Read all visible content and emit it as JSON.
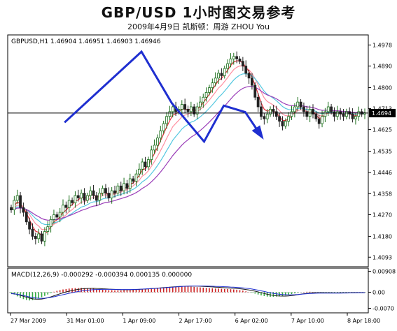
{
  "header": {
    "title": "GBP/USD 1小时图交易参考",
    "subtitle": "2009年4月9日  凯斯顿：周游 ZHOU You"
  },
  "chart_data": {
    "type": "line",
    "main_label": "GBPUSD,H1  1.46904 1.46951 1.46903 1.46946",
    "macd_label": "MACD(12,26,9) -0.000292 -0.000394 0.000135 0.000000",
    "price_axis": {
      "ylim": [
        1.4053,
        1.502
      ],
      "ticks": [
        "1.4978",
        "1.4890",
        "1.4800",
        "1.4713",
        "1.4625",
        "1.4535",
        "1.4446",
        "1.4358",
        "1.4270",
        "1.4180",
        "1.4093"
      ]
    },
    "macd_axis": {
      "ylim": [
        -0.009,
        0.0105
      ],
      "ticks": [
        "0.00908",
        "0.00",
        "-0.0070"
      ]
    },
    "current_price": {
      "value": 1.4694,
      "label": "1.4694"
    },
    "x_ticks": [
      "27 Mar 2009",
      "31 Mar 01:00",
      "1 Apr 09:00",
      "2 Apr 17:00",
      "6 Apr 02:00",
      "7 Apr 10:00",
      "8 Apr 18:00"
    ],
    "close": [
      1.429,
      1.433,
      1.435,
      1.43,
      1.428,
      1.424,
      1.421,
      1.418,
      1.417,
      1.419,
      1.416,
      1.42,
      1.422,
      1.425,
      1.427,
      1.426,
      1.428,
      1.431,
      1.43,
      1.433,
      1.432,
      1.435,
      1.434,
      1.436,
      1.433,
      1.435,
      1.437,
      1.435,
      1.433,
      1.436,
      1.438,
      1.436,
      1.434,
      1.437,
      1.436,
      1.439,
      1.437,
      1.44,
      1.438,
      1.442,
      1.441,
      1.444,
      1.446,
      1.449,
      1.447,
      1.45,
      1.454,
      1.456,
      1.459,
      1.462,
      1.465,
      1.468,
      1.47,
      1.472,
      1.47,
      1.471,
      1.473,
      1.471,
      1.47,
      1.472,
      1.469,
      1.472,
      1.474,
      1.476,
      1.478,
      1.48,
      1.482,
      1.484,
      1.486,
      1.485,
      1.488,
      1.49,
      1.492,
      1.493,
      1.492,
      1.491,
      1.489,
      1.486,
      1.484,
      1.481,
      1.476,
      1.472,
      1.468,
      1.467,
      1.469,
      1.471,
      1.47,
      1.468,
      1.466,
      1.464,
      1.466,
      1.468,
      1.47,
      1.472,
      1.474,
      1.472,
      1.47,
      1.468,
      1.471,
      1.469,
      1.467,
      1.465,
      1.468,
      1.47,
      1.472,
      1.47,
      1.468,
      1.47,
      1.469,
      1.468,
      1.47,
      1.469,
      1.467,
      1.468,
      1.47,
      1.469,
      1.4695
    ],
    "macd_hist": [
      -0.0005,
      -0.001,
      -0.0018,
      -0.0025,
      -0.003,
      -0.0034,
      -0.0036,
      -0.0035,
      -0.0032,
      -0.0028,
      -0.0022,
      -0.0016,
      -0.001,
      -0.0004,
      0.0002,
      0.0006,
      0.0009,
      0.0012,
      0.0014,
      0.0016,
      0.0017,
      0.0018,
      0.0018,
      0.0019,
      0.0018,
      0.0017,
      0.0016,
      0.0015,
      0.0013,
      0.0012,
      0.0011,
      0.001,
      0.0009,
      0.0009,
      0.0008,
      0.0008,
      0.0008,
      0.0009,
      0.0009,
      0.001,
      0.0011,
      0.0012,
      0.0013,
      0.0014,
      0.0015,
      0.0016,
      0.0017,
      0.0018,
      0.0019,
      0.002,
      0.0021,
      0.0022,
      0.0023,
      0.0024,
      0.0024,
      0.0024,
      0.0025,
      0.0025,
      0.0025,
      0.0024,
      0.0023,
      0.0022,
      0.0021,
      0.002,
      0.0019,
      0.0018,
      0.0017,
      0.0016,
      0.0016,
      0.0015,
      0.0014,
      0.0014,
      0.0013,
      0.0012,
      0.0011,
      0.0009,
      0.0007,
      0.0004,
      0.0001,
      -0.0002,
      -0.0006,
      -0.001,
      -0.0014,
      -0.0017,
      -0.0019,
      -0.002,
      -0.002,
      -0.0019,
      -0.0018,
      -0.0016,
      -0.0014,
      -0.0011,
      -0.0008,
      -0.0005,
      -0.0002,
      0.0,
      0.0001,
      0.0002,
      0.0002,
      0.0001,
      0.0,
      -0.0001,
      -0.0002,
      -0.0003,
      -0.0003,
      -0.0003,
      -0.0003,
      -0.0002,
      -0.0002,
      -0.0002,
      -0.0002,
      -0.0001,
      -0.0001,
      -0.0001,
      -0.0001,
      -0.0001,
      -0.0001
    ],
    "trend_arrow": [
      [
        0.155,
        1.4655
      ],
      [
        0.37,
        1.495
      ],
      [
        0.455,
        1.4735
      ],
      [
        0.545,
        1.4575
      ],
      [
        0.6,
        1.4725
      ],
      [
        0.66,
        1.4698
      ],
      [
        0.705,
        1.4598
      ]
    ],
    "colors": {
      "candle_up": "#1a6f1a",
      "candle_down": "#222222",
      "ma_red": "#e0303a",
      "ma_pink": "#ff8fa0",
      "ma_cyan": "#55c8e0",
      "ma_purple": "#9a3db8",
      "arrow": "#1f2fd0",
      "hist_pos": "#cc2222",
      "hist_neg": "#33aa44",
      "signal": "#1a1a1a"
    }
  }
}
